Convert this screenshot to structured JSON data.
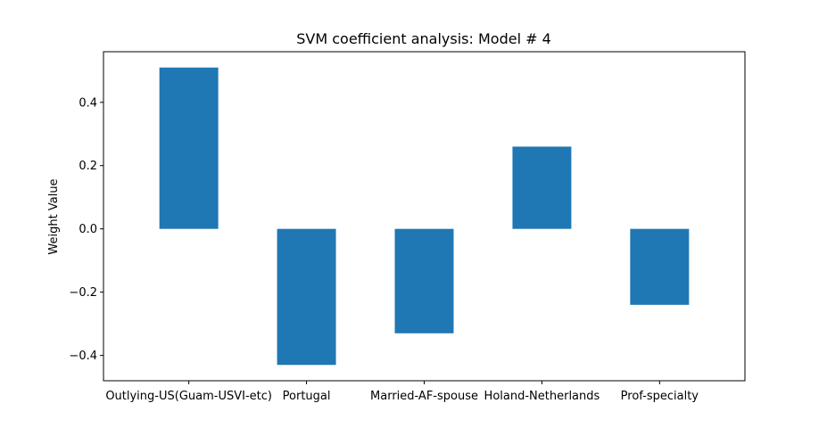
{
  "chart_data": {
    "type": "bar",
    "title": "SVM coefficient analysis: Model # 4",
    "xlabel": "",
    "ylabel": "Weight Value",
    "categories": [
      "Outlying-US(Guam-USVI-etc)",
      "Portugal",
      "Married-AF-spouse",
      "Holand-Netherlands",
      "Prof-specialty"
    ],
    "values": [
      0.51,
      -0.43,
      -0.33,
      0.26,
      -0.24
    ],
    "ylim": [
      -0.48,
      0.56
    ],
    "yticks": [
      -0.4,
      -0.2,
      0.0,
      0.2,
      0.4
    ],
    "ytick_labels": [
      "−0.4",
      "−0.2",
      "0.0",
      "0.2",
      "0.4"
    ],
    "bar_color": "#1f77b4",
    "grid": false,
    "legend": "none"
  }
}
